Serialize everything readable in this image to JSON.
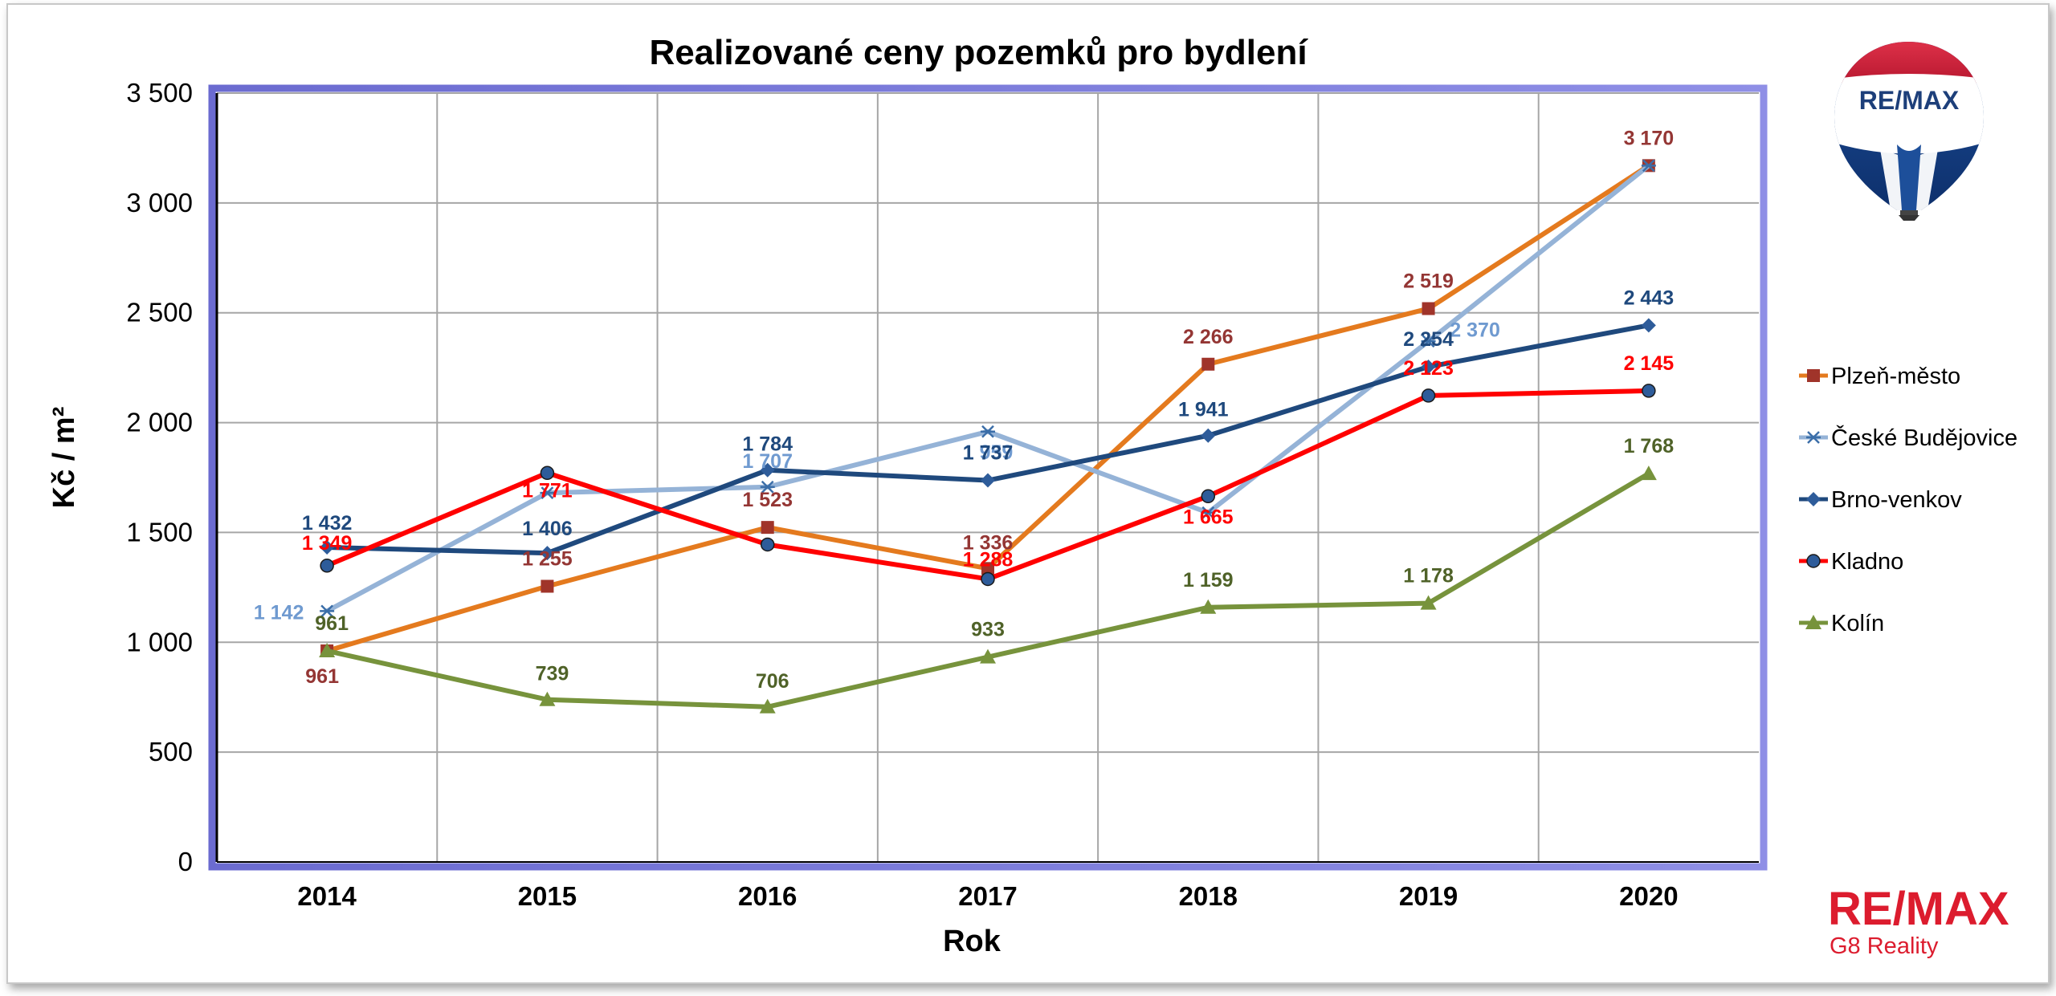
{
  "chart_data": {
    "type": "line",
    "title": "Realizované ceny pozemků pro bydlení",
    "xlabel": "Rok",
    "ylabel": "Kč / m²",
    "ylim": [
      0,
      3500
    ],
    "yticks": [
      0,
      500,
      1000,
      1500,
      2000,
      2500,
      3000,
      3500
    ],
    "ytick_labels": [
      "0",
      "500",
      "1 000",
      "1 500",
      "2 000",
      "2 500",
      "3 000",
      "3 500"
    ],
    "categories": [
      "2014",
      "2015",
      "2016",
      "2017",
      "2018",
      "2019",
      "2020"
    ],
    "grid": true,
    "legend_position": "right",
    "series": [
      {
        "name": "Plzeň-město",
        "color": "#e47a1e",
        "label_color": "#943634",
        "marker": "square",
        "marker_color": "#a0342a",
        "values": [
          961,
          1255,
          1523,
          1336,
          2266,
          2519,
          3170
        ],
        "labels": [
          "961",
          "1 255",
          "1 523",
          "1 336",
          "2 266",
          "2 519",
          "3 170"
        ]
      },
      {
        "name": "České Budějovice",
        "color": "#95b3d7",
        "label_color": "#6f9ad0",
        "marker": "star",
        "marker_color": "#3b6ea8",
        "values": [
          1142,
          1680,
          1707,
          1959,
          1590,
          2370,
          3170
        ],
        "labels": [
          "1 142",
          "",
          "1 707",
          "1 959",
          "",
          "2 370",
          ""
        ]
      },
      {
        "name": "Brno-venkov",
        "color": "#1f497d",
        "label_color": "#1f497d",
        "marker": "diamond",
        "marker_color": "#2e5c9a",
        "values": [
          1432,
          1406,
          1784,
          1737,
          1941,
          2254,
          2443
        ],
        "labels": [
          "1 432",
          "1 406",
          "1 784",
          "1 737",
          "1 941",
          "2 254",
          "2 443"
        ]
      },
      {
        "name": "Kladno",
        "color": "#ff0000",
        "label_color": "#ff0000",
        "marker": "circle",
        "marker_color": "#1f497d",
        "values": [
          1349,
          1771,
          1445,
          1288,
          1665,
          2123,
          2145
        ],
        "labels": [
          "1 349",
          "1 771",
          "",
          "1 288",
          "1 665",
          "2 123",
          "2 145"
        ]
      },
      {
        "name": "Kolín",
        "color": "#77933c",
        "label_color": "#4f6228",
        "marker": "triangle",
        "marker_color": "#77933c",
        "values": [
          961,
          739,
          706,
          933,
          1159,
          1178,
          1768
        ],
        "labels": [
          "961",
          "739",
          "706",
          "933",
          "1 159",
          "1 178",
          "1 768"
        ]
      }
    ]
  },
  "branding": {
    "balloon_text": "RE/MAX",
    "logo_text": "RE/MAX",
    "logo_subtitle": "G8 Reality"
  }
}
